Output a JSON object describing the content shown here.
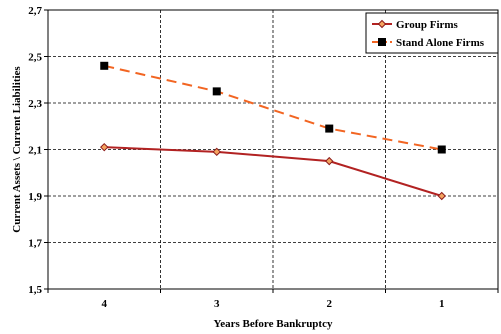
{
  "chart_data": {
    "type": "line",
    "title": "",
    "xlabel": "Years Before Bankruptcy",
    "ylabel": "Current Assets \\ Current Liabilities",
    "categories": [
      "4",
      "3",
      "2",
      "1"
    ],
    "ylim": [
      1.5,
      2.7
    ],
    "yticks": [
      "1,5",
      "1,7",
      "1,9",
      "2,1",
      "2,3",
      "2,5",
      "2,7"
    ],
    "grid": true,
    "legend_position": "top-right",
    "series": [
      {
        "name": "Group Firms",
        "values": [
          2.11,
          2.09,
          2.05,
          1.9
        ],
        "color": "#b22222",
        "line_style": "solid",
        "marker": "diamond"
      },
      {
        "name": "Stand Alone Firms",
        "values": [
          2.46,
          2.35,
          2.19,
          2.1
        ],
        "color": "#f26522",
        "line_style": "dashed",
        "marker": "square"
      }
    ]
  }
}
